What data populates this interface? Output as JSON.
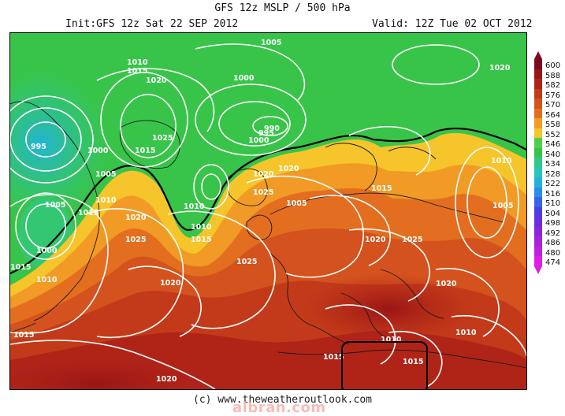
{
  "header": {
    "title": "GFS 12z MSLP / 500 hPa",
    "init": "Init:GFS 12z Sat 22 SEP 2012",
    "valid": "Valid: 12Z Tue 02 OCT 2012"
  },
  "legend": {
    "levels": [
      {
        "label": "600",
        "color": "#7a0a1e"
      },
      {
        "label": "588",
        "color": "#9a1515"
      },
      {
        "label": "582",
        "color": "#b02418"
      },
      {
        "label": "576",
        "color": "#c33a1a"
      },
      {
        "label": "570",
        "color": "#d4521d"
      },
      {
        "label": "564",
        "color": "#e36e20"
      },
      {
        "label": "558",
        "color": "#f19a25"
      },
      {
        "label": "552",
        "color": "#f6c52b"
      },
      {
        "label": "546",
        "color": "#4fd04d"
      },
      {
        "label": "540",
        "color": "#38c449"
      },
      {
        "label": "534",
        "color": "#2ec98a"
      },
      {
        "label": "528",
        "color": "#25c6b8"
      },
      {
        "label": "522",
        "color": "#21b3d9"
      },
      {
        "label": "516",
        "color": "#2a8ee8"
      },
      {
        "label": "510",
        "color": "#3b62ea"
      },
      {
        "label": "504",
        "color": "#4b3fe3"
      },
      {
        "label": "498",
        "color": "#6a2fe0"
      },
      {
        "label": "492",
        "color": "#8a27dc"
      },
      {
        "label": "486",
        "color": "#a822dc"
      },
      {
        "label": "480",
        "color": "#c41edf"
      },
      {
        "label": "474",
        "color": "#de1ee4"
      }
    ]
  },
  "map": {
    "pressure_labels": [
      {
        "text": "1005"
      },
      {
        "text": "1010"
      },
      {
        "text": "1015"
      },
      {
        "text": "1020"
      },
      {
        "text": "1000"
      },
      {
        "text": "1025"
      },
      {
        "text": "1015"
      },
      {
        "text": "995"
      },
      {
        "text": "1000"
      },
      {
        "text": "1005"
      },
      {
        "text": "1010"
      },
      {
        "text": "1015"
      },
      {
        "text": "1005"
      },
      {
        "text": "1000"
      },
      {
        "text": "1010"
      },
      {
        "text": "1020"
      },
      {
        "text": "1025"
      },
      {
        "text": "1010"
      },
      {
        "text": "1015"
      },
      {
        "text": "1020"
      },
      {
        "text": "1025"
      },
      {
        "text": "1015"
      },
      {
        "text": "1020"
      },
      {
        "text": "1025"
      },
      {
        "text": "1020"
      },
      {
        "text": "1025"
      },
      {
        "text": "1020"
      },
      {
        "text": "1010"
      },
      {
        "text": "1015"
      },
      {
        "text": "1010"
      },
      {
        "text": "1015"
      },
      {
        "text": "1020"
      },
      {
        "text": "1015"
      },
      {
        "text": "1005"
      },
      {
        "text": "1010"
      },
      {
        "text": "1020"
      },
      {
        "text": "1010"
      },
      {
        "text": "1000"
      },
      {
        "text": "995"
      },
      {
        "text": "990"
      },
      {
        "text": "1005"
      },
      {
        "text": "1015"
      },
      {
        "text": "1020"
      }
    ]
  },
  "footer": {
    "credit": "(c) www.theweatheroutlook.com",
    "watermark": "albran.com"
  }
}
